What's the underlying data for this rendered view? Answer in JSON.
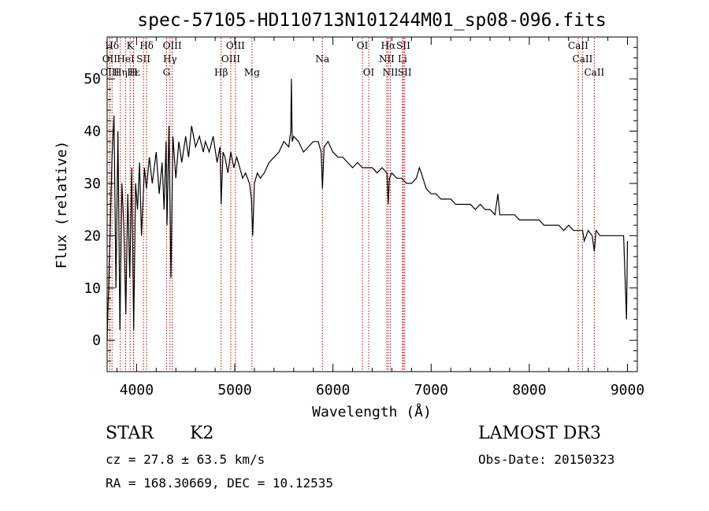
{
  "chart_data": {
    "type": "line",
    "title": "spec-57105-HD110713N101244M01_sp08-096.fits",
    "xlabel": "Wavelength (Å)",
    "ylabel": "Flux (relative)",
    "xlim": [
      3700,
      9100
    ],
    "ylim": [
      -6,
      58
    ],
    "xticks": [
      4000,
      5000,
      6000,
      7000,
      8000,
      9000
    ],
    "yticks": [
      0,
      10,
      20,
      30,
      40,
      50
    ],
    "series": [
      {
        "name": "flux",
        "x": [
          3700,
          3730,
          3750,
          3770,
          3790,
          3810,
          3830,
          3850,
          3870,
          3890,
          3910,
          3930,
          3950,
          3970,
          3990,
          4010,
          4030,
          4050,
          4080,
          4100,
          4130,
          4160,
          4200,
          4230,
          4260,
          4280,
          4300,
          4310,
          4330,
          4350,
          4370,
          4400,
          4430,
          4460,
          4500,
          4530,
          4560,
          4600,
          4640,
          4680,
          4700,
          4740,
          4780,
          4820,
          4850,
          4861,
          4880,
          4900,
          4930,
          4960,
          4990,
          5020,
          5050,
          5080,
          5110,
          5150,
          5170,
          5183,
          5200,
          5230,
          5260,
          5300,
          5350,
          5400,
          5450,
          5500,
          5550,
          5570,
          5577,
          5585,
          5600,
          5650,
          5700,
          5750,
          5800,
          5850,
          5880,
          5893,
          5910,
          5950,
          6000,
          6050,
          6100,
          6150,
          6200,
          6250,
          6300,
          6350,
          6400,
          6450,
          6500,
          6550,
          6563,
          6575,
          6600,
          6650,
          6700,
          6750,
          6800,
          6850,
          6880,
          6900,
          6950,
          7000,
          7050,
          7100,
          7150,
          7200,
          7250,
          7300,
          7350,
          7400,
          7450,
          7500,
          7550,
          7600,
          7650,
          7680,
          7700,
          7750,
          7800,
          7850,
          7900,
          7950,
          8000,
          8050,
          8100,
          8150,
          8200,
          8250,
          8300,
          8350,
          8400,
          8450,
          8500,
          8542,
          8560,
          8600,
          8640,
          8662,
          8680,
          8720,
          8760,
          8800,
          8840,
          8880,
          8920,
          8960,
          8990,
          9000
        ],
        "y": [
          0,
          20,
          35,
          43,
          10,
          40,
          2,
          30,
          22,
          5,
          28,
          12,
          33,
          2,
          30,
          25,
          34,
          20,
          33,
          29,
          35,
          30,
          36,
          28,
          34,
          25,
          38,
          22,
          41,
          12,
          39,
          31,
          38,
          34,
          39,
          35,
          41,
          37,
          39,
          36,
          38,
          36,
          39,
          34,
          37,
          26,
          36,
          35,
          32,
          36,
          33,
          35,
          33,
          31,
          32,
          30,
          27,
          20,
          30,
          32,
          31,
          32,
          34,
          35,
          36,
          38,
          37,
          40,
          50,
          38,
          39,
          38,
          36,
          37,
          38,
          38,
          36,
          29,
          37,
          38,
          36,
          35,
          35,
          34,
          33,
          34,
          33,
          33,
          33,
          32,
          33,
          32,
          26,
          31,
          32,
          31,
          31,
          30,
          30,
          31,
          33,
          32,
          29,
          28,
          28,
          27,
          27,
          27,
          26,
          26,
          26,
          26,
          25,
          26,
          25,
          25,
          24,
          28,
          24,
          24,
          24,
          24,
          23,
          23,
          23,
          23,
          23,
          22,
          22,
          22,
          22,
          21,
          22,
          21,
          21,
          21,
          19,
          21,
          20,
          17,
          21,
          20,
          20,
          20,
          20,
          20,
          20,
          20,
          4,
          19
        ],
        "color": "#000000"
      }
    ],
    "lines": [
      {
        "label": "Hδ",
        "wavelength": 3750,
        "row": 1
      },
      {
        "label": "OII",
        "wavelength": 3727,
        "row": 2
      },
      {
        "label": "OIII",
        "wavelength": 3727,
        "row": 3
      },
      {
        "label": "K",
        "wavelength": 3934,
        "row": 1
      },
      {
        "label": "HeI",
        "wavelength": 3889,
        "row": 2
      },
      {
        "label": "Hη",
        "wavelength": 3835,
        "row": 3
      },
      {
        "label": "Hε",
        "wavelength": 3970,
        "row": 3
      },
      {
        "label": "H",
        "wavelength": 3968,
        "row": 3
      },
      {
        "label": "SII",
        "wavelength": 4070,
        "row": 2
      },
      {
        "label": "Hδ",
        "wavelength": 4102,
        "row": 1
      },
      {
        "label": "OIII",
        "wavelength": 4363,
        "row": 1
      },
      {
        "label": "Hγ",
        "wavelength": 4340,
        "row": 2
      },
      {
        "label": "G",
        "wavelength": 4305,
        "row": 3
      },
      {
        "label": "OIII",
        "wavelength": 5007,
        "row": 1
      },
      {
        "label": "OIII",
        "wavelength": 4959,
        "row": 2
      },
      {
        "label": "Hβ",
        "wavelength": 4861,
        "row": 3
      },
      {
        "label": "Mg",
        "wavelength": 5175,
        "row": 3
      },
      {
        "label": "Na",
        "wavelength": 5893,
        "row": 2
      },
      {
        "label": "OI",
        "wavelength": 6300,
        "row": 1
      },
      {
        "label": "OI",
        "wavelength": 6364,
        "row": 3
      },
      {
        "label": "Hα",
        "wavelength": 6563,
        "row": 1
      },
      {
        "label": "SII",
        "wavelength": 6717,
        "row": 1
      },
      {
        "label": "NII",
        "wavelength": 6548,
        "row": 2
      },
      {
        "label": "Li",
        "wavelength": 6708,
        "row": 2
      },
      {
        "label": "NII",
        "wavelength": 6584,
        "row": 3
      },
      {
        "label": "SII",
        "wavelength": 6731,
        "row": 3
      },
      {
        "label": "CaII",
        "wavelength": 8498,
        "row": 1
      },
      {
        "label": "CaII",
        "wavelength": 8542,
        "row": 2
      },
      {
        "label": "CaII",
        "wavelength": 8662,
        "row": 3
      }
    ],
    "line_color": "#cc0000",
    "grid": false,
    "legend": "none"
  },
  "info": {
    "class": "STAR",
    "subclass": "K2",
    "survey": "LAMOST DR3",
    "cz": "cz = 27.8 ± 63.5 km/s",
    "obs_date": "Obs-Date: 20150323",
    "radec": "RA = 168.30669, DEC =  10.12535"
  }
}
